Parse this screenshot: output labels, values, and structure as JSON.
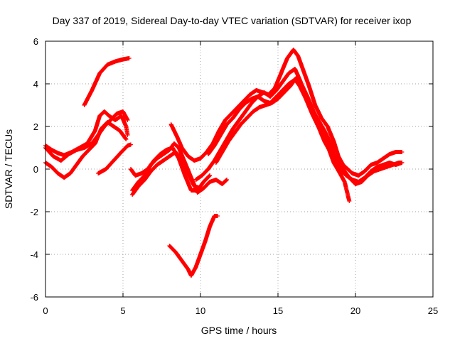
{
  "chart_data": {
    "type": "scatter",
    "title": "Day 337 of 2019, Sidereal Day-to-day VTEC variation (SDTVAR) for receiver ixop",
    "xlabel": "GPS time / hours",
    "ylabel": "SDTVAR / TECUs",
    "xlim": [
      0,
      25
    ],
    "ylim": [
      -6,
      6
    ],
    "x_ticks": [
      0,
      5,
      10,
      15,
      20,
      25
    ],
    "y_ticks": [
      -6,
      -4,
      -2,
      0,
      2,
      4,
      6
    ],
    "x_tick_labels": [
      "0",
      "5",
      "10",
      "15",
      "20",
      "25"
    ],
    "y_tick_labels": [
      "-6",
      "-4",
      "-2",
      "0",
      "2",
      "4",
      "6"
    ],
    "grid": true,
    "marker": "+",
    "color": "#ff0000",
    "series": [
      {
        "points": [
          [
            2.5,
            3.0
          ],
          [
            3.0,
            3.7
          ],
          [
            3.5,
            4.5
          ],
          [
            4.0,
            4.9
          ],
          [
            4.5,
            5.05
          ],
          [
            5.0,
            5.15
          ],
          [
            5.4,
            5.2
          ]
        ]
      },
      {
        "points": [
          [
            0.0,
            1.1
          ],
          [
            0.4,
            0.9
          ],
          [
            0.8,
            0.75
          ],
          [
            1.2,
            0.65
          ],
          [
            1.7,
            0.8
          ],
          [
            2.2,
            1.0
          ],
          [
            2.7,
            1.2
          ],
          [
            3.2,
            1.8
          ],
          [
            3.5,
            2.5
          ],
          [
            3.8,
            2.7
          ],
          [
            4.1,
            2.5
          ],
          [
            4.5,
            2.3
          ],
          [
            4.9,
            2.5
          ],
          [
            5.2,
            2.0
          ],
          [
            5.3,
            1.6
          ]
        ]
      },
      {
        "points": [
          [
            0.0,
            1.0
          ],
          [
            0.5,
            0.6
          ],
          [
            1.0,
            0.4
          ],
          [
            1.5,
            0.7
          ],
          [
            2.0,
            0.9
          ],
          [
            2.5,
            1.0
          ],
          [
            3.0,
            1.2
          ],
          [
            3.4,
            1.6
          ],
          [
            3.8,
            2.0
          ],
          [
            4.2,
            2.3
          ],
          [
            4.6,
            2.6
          ],
          [
            5.0,
            2.7
          ],
          [
            5.3,
            2.3
          ]
        ]
      },
      {
        "points": [
          [
            0.0,
            0.3
          ],
          [
            0.4,
            0.1
          ],
          [
            0.8,
            -0.2
          ],
          [
            1.2,
            -0.4
          ],
          [
            1.6,
            -0.2
          ],
          [
            2.0,
            0.2
          ],
          [
            2.4,
            0.6
          ],
          [
            2.8,
            0.9
          ],
          [
            3.2,
            1.2
          ],
          [
            3.6,
            1.9
          ],
          [
            4.0,
            2.2
          ],
          [
            4.4,
            2.0
          ],
          [
            4.8,
            1.8
          ],
          [
            5.2,
            1.4
          ]
        ]
      },
      {
        "points": [
          [
            3.4,
            -0.2
          ],
          [
            3.9,
            0.0
          ],
          [
            4.4,
            0.4
          ],
          [
            4.9,
            0.8
          ],
          [
            5.3,
            1.1
          ],
          [
            5.5,
            1.15
          ]
        ]
      },
      {
        "points": [
          [
            5.5,
            0.0
          ],
          [
            5.8,
            -0.3
          ],
          [
            6.2,
            -0.2
          ],
          [
            6.6,
            0.0
          ],
          [
            7.0,
            0.4
          ],
          [
            7.4,
            0.7
          ],
          [
            7.8,
            0.9
          ],
          [
            8.2,
            1.0
          ],
          [
            8.6,
            0.5
          ],
          [
            9.0,
            -0.3
          ],
          [
            9.4,
            -1.0
          ],
          [
            9.8,
            -1.0
          ],
          [
            10.2,
            -0.6
          ],
          [
            10.6,
            -0.3
          ]
        ]
      },
      {
        "points": [
          [
            5.6,
            -1.0
          ],
          [
            6.0,
            -0.6
          ],
          [
            6.4,
            -0.3
          ],
          [
            6.8,
            0.2
          ],
          [
            7.2,
            0.5
          ],
          [
            7.6,
            0.7
          ],
          [
            8.0,
            0.9
          ],
          [
            8.3,
            1.2
          ],
          [
            8.6,
            1.0
          ],
          [
            9.0,
            0.3
          ],
          [
            9.4,
            -0.4
          ],
          [
            9.8,
            -1.1
          ],
          [
            10.2,
            -0.9
          ],
          [
            10.6,
            -0.6
          ],
          [
            11.0,
            -0.5
          ],
          [
            11.4,
            -0.7
          ],
          [
            11.7,
            -0.5
          ]
        ]
      },
      {
        "points": [
          [
            5.6,
            -1.2
          ],
          [
            6.0,
            -0.8
          ],
          [
            6.4,
            -0.5
          ],
          [
            6.8,
            -0.1
          ],
          [
            7.2,
            0.2
          ],
          [
            7.6,
            0.4
          ],
          [
            8.0,
            0.6
          ],
          [
            8.4,
            0.8
          ],
          [
            8.8,
            0.4
          ],
          [
            9.2,
            -0.2
          ],
          [
            9.6,
            -0.8
          ],
          [
            10.0,
            -0.9
          ]
        ]
      },
      {
        "points": [
          [
            8.1,
            2.1
          ],
          [
            8.5,
            1.5
          ],
          [
            8.8,
            1.0
          ],
          [
            9.2,
            0.6
          ],
          [
            9.6,
            0.4
          ],
          [
            10.0,
            0.5
          ],
          [
            10.4,
            0.8
          ],
          [
            10.8,
            1.2
          ],
          [
            11.2,
            1.8
          ],
          [
            11.6,
            2.3
          ],
          [
            12.0,
            2.6
          ],
          [
            12.4,
            2.9
          ],
          [
            12.8,
            3.2
          ],
          [
            13.2,
            3.5
          ],
          [
            13.6,
            3.7
          ],
          [
            14.0,
            3.6
          ],
          [
            14.4,
            3.5
          ],
          [
            14.8,
            3.8
          ],
          [
            15.2,
            4.5
          ],
          [
            15.6,
            5.2
          ],
          [
            16.0,
            5.6
          ],
          [
            16.3,
            5.3
          ],
          [
            16.6,
            4.7
          ],
          [
            17.0,
            3.9
          ],
          [
            17.4,
            3.0
          ],
          [
            17.8,
            2.4
          ],
          [
            18.2,
            2.0
          ],
          [
            18.6,
            1.3
          ],
          [
            18.9,
            0.6
          ],
          [
            19.2,
            0.2
          ],
          [
            19.5,
            0.0
          ],
          [
            19.8,
            -0.2
          ],
          [
            20.2,
            -0.3
          ],
          [
            20.6,
            -0.1
          ],
          [
            21.0,
            0.2
          ],
          [
            21.4,
            0.3
          ],
          [
            21.8,
            0.5
          ],
          [
            22.2,
            0.7
          ],
          [
            22.6,
            0.8
          ],
          [
            23.0,
            0.8
          ]
        ]
      },
      {
        "points": [
          [
            9.7,
            -0.5
          ],
          [
            10.1,
            -0.3
          ],
          [
            10.5,
            0.0
          ],
          [
            10.9,
            0.4
          ],
          [
            11.3,
            0.9
          ],
          [
            11.7,
            1.4
          ],
          [
            12.1,
            1.9
          ],
          [
            12.5,
            2.3
          ],
          [
            12.9,
            2.7
          ],
          [
            13.3,
            3.1
          ],
          [
            13.7,
            3.4
          ],
          [
            14.1,
            3.6
          ],
          [
            14.5,
            3.4
          ],
          [
            14.9,
            3.7
          ],
          [
            15.3,
            4.1
          ],
          [
            15.7,
            4.5
          ],
          [
            16.1,
            4.7
          ],
          [
            16.4,
            4.2
          ],
          [
            16.8,
            3.5
          ],
          [
            17.2,
            2.8
          ],
          [
            17.6,
            2.3
          ],
          [
            18.0,
            1.8
          ],
          [
            18.4,
            1.2
          ],
          [
            18.7,
            0.4
          ],
          [
            19.0,
            0.0
          ],
          [
            19.4,
            -0.3
          ],
          [
            19.8,
            -0.5
          ],
          [
            20.2,
            -0.6
          ],
          [
            20.6,
            -0.4
          ],
          [
            21.0,
            -0.1
          ],
          [
            21.4,
            0.1
          ],
          [
            21.8,
            0.2
          ],
          [
            22.2,
            0.3
          ],
          [
            22.6,
            0.2
          ],
          [
            23.0,
            0.3
          ]
        ]
      },
      {
        "points": [
          [
            10.5,
            0.7
          ],
          [
            10.9,
            1.1
          ],
          [
            11.3,
            1.6
          ],
          [
            11.7,
            2.1
          ],
          [
            12.1,
            2.4
          ],
          [
            12.5,
            2.8
          ],
          [
            12.9,
            3.1
          ],
          [
            13.3,
            3.3
          ],
          [
            13.7,
            3.4
          ],
          [
            14.1,
            3.2
          ],
          [
            14.5,
            3.1
          ],
          [
            14.9,
            3.4
          ],
          [
            15.3,
            3.7
          ],
          [
            15.7,
            4.0
          ],
          [
            16.1,
            4.2
          ],
          [
            16.4,
            3.9
          ],
          [
            16.8,
            3.3
          ],
          [
            17.2,
            2.6
          ],
          [
            17.6,
            2.0
          ],
          [
            18.0,
            1.3
          ],
          [
            18.3,
            0.9
          ],
          [
            18.6,
            0.3
          ],
          [
            19.0,
            -0.2
          ],
          [
            19.3,
            -0.6
          ],
          [
            19.6,
            -1.5
          ]
        ]
      },
      {
        "points": [
          [
            11.0,
            0.3
          ],
          [
            11.4,
            0.8
          ],
          [
            11.8,
            1.3
          ],
          [
            12.2,
            1.7
          ],
          [
            12.6,
            2.1
          ],
          [
            13.0,
            2.4
          ],
          [
            13.4,
            2.7
          ],
          [
            13.8,
            2.9
          ],
          [
            14.2,
            3.0
          ],
          [
            14.6,
            3.1
          ],
          [
            15.0,
            3.3
          ],
          [
            15.4,
            3.6
          ],
          [
            15.8,
            3.9
          ],
          [
            16.2,
            4.3
          ],
          [
            16.5,
            4.0
          ],
          [
            16.9,
            3.4
          ],
          [
            17.3,
            2.7
          ],
          [
            17.7,
            2.1
          ],
          [
            18.1,
            1.5
          ],
          [
            18.5,
            0.8
          ],
          [
            18.8,
            0.4
          ],
          [
            19.2,
            0.0
          ],
          [
            19.6,
            -0.4
          ],
          [
            20.0,
            -0.7
          ],
          [
            20.4,
            -0.6
          ],
          [
            20.8,
            -0.3
          ],
          [
            21.2,
            -0.1
          ],
          [
            21.6,
            0.0
          ],
          [
            22.0,
            0.1
          ],
          [
            22.4,
            0.2
          ],
          [
            22.8,
            0.3
          ],
          [
            23.0,
            0.3
          ]
        ]
      },
      {
        "points": [
          [
            8.0,
            -3.6
          ],
          [
            8.4,
            -3.9
          ],
          [
            8.8,
            -4.3
          ],
          [
            9.2,
            -4.7
          ],
          [
            9.4,
            -5.0
          ],
          [
            9.7,
            -4.6
          ],
          [
            10.0,
            -4.0
          ],
          [
            10.3,
            -3.4
          ],
          [
            10.6,
            -2.7
          ],
          [
            10.9,
            -2.2
          ],
          [
            11.1,
            -2.2
          ]
        ]
      }
    ]
  }
}
